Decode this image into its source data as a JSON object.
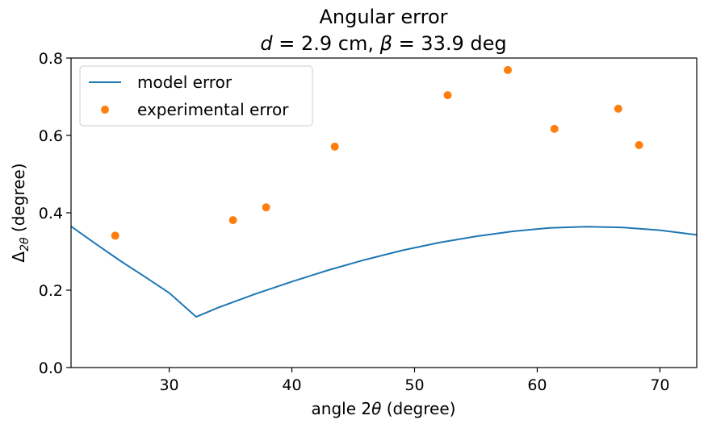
{
  "chart_data": {
    "type": "scatter",
    "title_line1": "Angular error",
    "title_line2": {
      "d_symbol": "d",
      "d_text": " = 2.9 cm, ",
      "beta_symbol": "β",
      "beta_text": " = 33.9 deg"
    },
    "xlabel": {
      "prefix": "angle 2",
      "symbol": "θ",
      "suffix": " (degree)"
    },
    "ylabel": {
      "main": "Δ",
      "sub": "2θ",
      "suffix": " (degree)"
    },
    "xlim": [
      22,
      73
    ],
    "ylim": [
      0,
      0.8
    ],
    "xticks": [
      30,
      40,
      50,
      60,
      70
    ],
    "yticks": [
      0.0,
      0.2,
      0.4,
      0.6,
      0.8
    ],
    "yticks_labels": [
      "0.0",
      "0.2",
      "0.4",
      "0.6",
      "0.8"
    ],
    "legend_position": "upper-left",
    "series": [
      {
        "name": "model error",
        "kind": "line",
        "color": "#1f77b4",
        "x": [
          22,
          24,
          26,
          28,
          30,
          32.2,
          34,
          37,
          40,
          43,
          46,
          49,
          52,
          55,
          58,
          61,
          64,
          67,
          70,
          73
        ],
        "y": [
          0.365,
          0.32,
          0.276,
          0.235,
          0.193,
          0.131,
          0.155,
          0.19,
          0.222,
          0.252,
          0.279,
          0.303,
          0.323,
          0.339,
          0.352,
          0.361,
          0.364,
          0.362,
          0.355,
          0.343
        ]
      },
      {
        "name": "experimental error",
        "kind": "scatter",
        "color": "#ff7f0e",
        "x": [
          25.6,
          35.2,
          37.9,
          43.5,
          52.7,
          57.6,
          61.4,
          66.6,
          68.3
        ],
        "y": [
          0.341,
          0.381,
          0.414,
          0.571,
          0.704,
          0.769,
          0.617,
          0.669,
          0.575
        ]
      }
    ]
  }
}
